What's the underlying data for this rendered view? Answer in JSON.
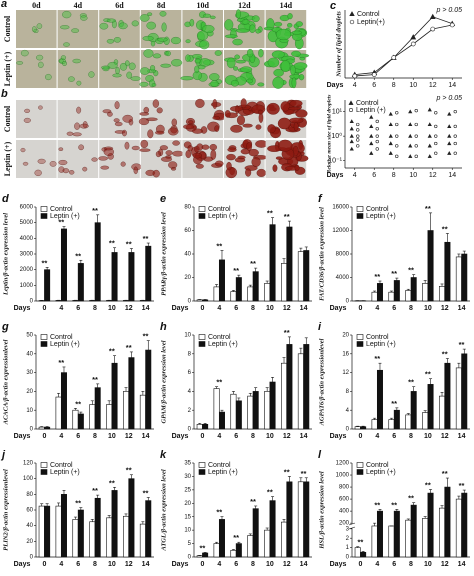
{
  "micrographs": {
    "a": {
      "label": "a",
      "columns": [
        "0d",
        "4d",
        "6d",
        "8d",
        "10d",
        "12d",
        "14d"
      ],
      "rows": [
        "Control",
        "Leptin (+)"
      ]
    },
    "b": {
      "label": "b",
      "rows": [
        "Control",
        "Leptin (+)"
      ]
    }
  },
  "chart_data": [
    {
      "type": "line",
      "label": "c",
      "y_label": "Number of lipid droplets",
      "x_label": "Days",
      "annotation": "p > 0.05",
      "x": [
        4,
        6,
        8,
        10,
        12,
        14
      ],
      "xlim": [
        3,
        15
      ],
      "xticks": [
        4,
        6,
        8,
        10,
        12,
        14
      ],
      "ylim": [
        0,
        100
      ],
      "series": [
        {
          "name": "Control",
          "marker": "triangle",
          "color": "#222222",
          "values": [
            5,
            8,
            30,
            60,
            90,
            80
          ]
        },
        {
          "name": "Leptin(+)",
          "marker": "circle",
          "color": "#222222",
          "values": [
            3,
            5,
            30,
            50,
            72,
            78
          ]
        }
      ]
    },
    {
      "type": "scatter",
      "y_label": "Relative mean size of lipid droplets",
      "x_label": "Days",
      "annotation": "p > 0.05",
      "log_y": true,
      "xlim": [
        3,
        15
      ],
      "xticks": [
        4,
        6,
        8,
        10,
        12,
        14
      ],
      "ylim": [
        0.05,
        30
      ],
      "yticks": [
        {
          "value": 0.1,
          "label": "10⁻¹"
        },
        {
          "value": 1,
          "label": "10⁰"
        },
        {
          "value": 10,
          "label": "10¹"
        }
      ],
      "series": [
        {
          "name": "Control",
          "marker": "triangle",
          "color": "#222222",
          "x": [
            4,
            4,
            4,
            4,
            4,
            6,
            6,
            6,
            6,
            6,
            8,
            8,
            8,
            8,
            8,
            10,
            10,
            10,
            10,
            10,
            12,
            12,
            12,
            12,
            12,
            14,
            14,
            14,
            14,
            14
          ],
          "y": [
            0.3,
            0.6,
            1,
            2,
            4,
            0.2,
            0.5,
            1,
            2.5,
            6,
            0.2,
            0.5,
            1,
            3,
            8,
            0.15,
            0.4,
            1,
            3,
            10,
            0.15,
            0.4,
            1,
            3,
            12,
            0.2,
            0.5,
            1,
            2.5,
            8
          ]
        },
        {
          "name": "Leptin (+)",
          "marker": "circle",
          "color": "#222222",
          "x": [
            4,
            4,
            4,
            4,
            4,
            6,
            6,
            6,
            6,
            6,
            8,
            8,
            8,
            8,
            8,
            10,
            10,
            10,
            10,
            10,
            12,
            12,
            12,
            12,
            12,
            14,
            14,
            14,
            14,
            14
          ],
          "y": [
            0.4,
            0.7,
            1,
            1.8,
            3,
            0.3,
            0.6,
            1,
            2,
            4,
            0.15,
            0.4,
            1,
            3,
            9,
            0.15,
            0.4,
            1,
            3,
            11,
            0.2,
            0.5,
            1,
            2.5,
            9,
            0.2,
            0.5,
            1,
            2.5,
            10
          ]
        }
      ]
    },
    {
      "type": "bar",
      "label": "d",
      "y_label": "Leptin/β-actin expression level",
      "x_label": "Days",
      "categories": [
        "0",
        "4",
        "6",
        "8",
        "10",
        "12",
        "14"
      ],
      "ylim": [
        0,
        6000
      ],
      "yticks": [
        0,
        1000,
        2000,
        3000,
        4000,
        5000,
        6000
      ],
      "series": [
        {
          "name": "Control",
          "color": "#ffffff",
          "values": [
            30,
            40,
            40,
            40,
            40,
            40,
            40
          ],
          "errors": [
            10,
            10,
            10,
            10,
            10,
            10,
            10
          ]
        },
        {
          "name": "Leptin (+)",
          "color": "#111111",
          "values": [
            2000,
            4600,
            2400,
            5000,
            3100,
            3100,
            3500
          ],
          "errors": [
            150,
            150,
            200,
            500,
            300,
            250,
            200
          ]
        }
      ],
      "significance": [
        "**",
        "**",
        "**",
        "**",
        "**",
        "**",
        "**"
      ]
    },
    {
      "type": "bar",
      "label": "e",
      "y_label": "PPARγ/β-actin expression level",
      "x_label": "Days",
      "categories": [
        "0",
        "4",
        "6",
        "8",
        "10",
        "12",
        "14"
      ],
      "ylim": [
        0,
        80
      ],
      "yticks": [
        0,
        20,
        40,
        60,
        80
      ],
      "series": [
        {
          "name": "Control",
          "color": "#ffffff",
          "values": [
            1,
            12,
            8,
            12,
            15,
            32,
            42
          ],
          "errors": [
            0.3,
            2,
            1,
            1.5,
            2,
            4,
            3
          ]
        },
        {
          "name": "Leptin (+)",
          "color": "#111111",
          "values": [
            1,
            35,
            20,
            25,
            65,
            63,
            43
          ],
          "errors": [
            0.3,
            8,
            2,
            3,
            6,
            5,
            3
          ]
        }
      ],
      "significance": [
        null,
        "**",
        "**",
        "**",
        "**",
        "**",
        null
      ]
    },
    {
      "type": "bar",
      "label": "f",
      "y_label": "FAT/CD36/β-actin expression level",
      "x_label": "Days",
      "categories": [
        "0",
        "4",
        "6",
        "8",
        "10",
        "12",
        "14"
      ],
      "ylim": [
        0,
        16000
      ],
      "yticks": [
        0,
        4000,
        8000,
        12000,
        16000
      ],
      "series": [
        {
          "name": "Control",
          "color": "#ffffff",
          "values": [
            50,
            1500,
            1500,
            1800,
            3000,
            2500,
            7500
          ],
          "errors": [
            20,
            200,
            200,
            200,
            500,
            400,
            500
          ]
        },
        {
          "name": "Leptin (+)",
          "color": "#111111",
          "values": [
            50,
            3000,
            3500,
            4000,
            12000,
            10000,
            8000
          ],
          "errors": [
            20,
            400,
            400,
            500,
            3000,
            1500,
            500
          ]
        }
      ],
      "significance": [
        null,
        "**",
        "**",
        "**",
        "**",
        "**",
        null
      ]
    },
    {
      "type": "bar",
      "label": "g",
      "y_label": "ACACA/β-actin expressionlevel",
      "x_label": "Days",
      "categories": [
        "0",
        "4",
        "6",
        "8",
        "10",
        "12",
        "14"
      ],
      "ylim": [
        0,
        50
      ],
      "yticks": [
        0,
        10,
        20,
        30,
        40,
        50
      ],
      "series": [
        {
          "name": "Control",
          "color": "#ffffff",
          "values": [
            1,
            17,
            10,
            13,
            13,
            20,
            18
          ],
          "errors": [
            0.3,
            2,
            1,
            2,
            2,
            2,
            2
          ]
        },
        {
          "name": "Leptin (+)",
          "color": "#111111",
          "values": [
            1,
            30,
            8,
            22,
            35,
            38,
            42
          ],
          "errors": [
            0.3,
            3,
            1,
            2,
            4,
            3,
            5
          ]
        }
      ],
      "significance": [
        null,
        "**",
        "**",
        "**",
        "**",
        "**",
        "**"
      ]
    },
    {
      "type": "bar",
      "label": "h",
      "y_label": "GPAM/β-actin expression level",
      "x_label": "Days",
      "categories": [
        "0",
        "4",
        "6",
        "8",
        "10",
        "12",
        "14"
      ],
      "ylim": [
        0,
        10
      ],
      "yticks": [
        0,
        2,
        4,
        6,
        8,
        10
      ],
      "series": [
        {
          "name": "Control",
          "color": "#ffffff",
          "values": [
            0.5,
            4.3,
            3.7,
            3.5,
            4,
            7,
            8
          ],
          "errors": [
            0.1,
            0.2,
            0.3,
            0.3,
            0.4,
            0.6,
            0.6
          ]
        },
        {
          "name": "Leptin (+)",
          "color": "#111111",
          "values": [
            0.5,
            1.8,
            3,
            4,
            5,
            9,
            9
          ],
          "errors": [
            0.1,
            0.2,
            0.3,
            0.4,
            0.5,
            0.8,
            0.7
          ]
        }
      ],
      "significance": [
        null,
        "**",
        null,
        null,
        null,
        "**",
        null
      ]
    },
    {
      "type": "bar",
      "label": "i",
      "y_label": "AGPAT6/β-actin expressionlevel",
      "x_label": "Days",
      "categories": [
        "0",
        "4",
        "6",
        "8",
        "10",
        "12",
        "14"
      ],
      "ylim": [
        0,
        20
      ],
      "yticks": [
        0,
        4,
        8,
        12,
        16,
        20
      ],
      "series": [
        {
          "name": "Control",
          "color": "#ffffff",
          "values": [
            0.5,
            2,
            2,
            3,
            3.5,
            7,
            13
          ],
          "errors": [
            0.1,
            0.3,
            0.3,
            0.3,
            0.4,
            0.8,
            1
          ]
        },
        {
          "name": "Leptin (+)",
          "color": "#111111",
          "values": [
            0.5,
            12.5,
            4,
            8,
            9.5,
            14,
            16
          ],
          "errors": [
            0.1,
            1.5,
            0.5,
            1,
            1.2,
            1,
            1
          ]
        }
      ],
      "significance": [
        null,
        "**",
        "**",
        "**",
        "**",
        "**",
        "**"
      ]
    },
    {
      "type": "bar",
      "label": "j",
      "y_label": "PLIN2/β-actin expressionlevel",
      "x_label": "Days",
      "categories": [
        "0",
        "4",
        "6",
        "8",
        "10",
        "12",
        "14"
      ],
      "ylim": [
        0,
        120
      ],
      "yticks": [
        0,
        20,
        40,
        60,
        80,
        100,
        120
      ],
      "series": [
        {
          "name": "Control",
          "color": "#ffffff",
          "values": [
            65,
            65,
            48,
            45,
            50,
            52,
            42
          ],
          "errors": [
            3,
            4,
            3,
            3,
            3,
            3,
            3
          ]
        },
        {
          "name": "Leptin (+)",
          "color": "#111111",
          "values": [
            65,
            80,
            60,
            75,
            85,
            100,
            72
          ],
          "errors": [
            3,
            5,
            3,
            4,
            4,
            5,
            4
          ]
        }
      ],
      "significance": [
        null,
        null,
        "**",
        "**",
        "**",
        "**",
        "**"
      ]
    },
    {
      "type": "bar",
      "label": "k",
      "y_label": "ATGL/β-actin expression level",
      "x_label": "Days",
      "categories": [
        "0",
        "4",
        "6",
        "8",
        "10",
        "12",
        "14"
      ],
      "ylim": [
        0,
        35
      ],
      "yticks": [
        0,
        5,
        10,
        15,
        20,
        25,
        30,
        35
      ],
      "series": [
        {
          "name": "Control",
          "color": "#ffffff",
          "values": [
            0.5,
            5,
            2.5,
            8,
            10,
            13,
            28
          ],
          "errors": [
            0.1,
            0.5,
            0.3,
            0.6,
            0.8,
            1,
            1.5
          ]
        },
        {
          "name": "Leptin (+)",
          "color": "#111111",
          "values": [
            1.5,
            14,
            5,
            18,
            21,
            28,
            28
          ],
          "errors": [
            0.2,
            1,
            0.5,
            1,
            1.5,
            2,
            1.5
          ]
        }
      ],
      "significance": [
        "**",
        "**",
        "**",
        "**",
        "**",
        "**",
        "**"
      ]
    },
    {
      "type": "bar",
      "label": "l",
      "y_label": "HSL/β-actin expression level",
      "x_label": "Days",
      "categories": [
        "0",
        "4",
        "6",
        "8",
        "10",
        "12",
        "14"
      ],
      "ylim": [
        0,
        1200
      ],
      "ybreak": [
        3,
        200
      ],
      "yticks": [
        0,
        1,
        2,
        3,
        200,
        400,
        600,
        800,
        1000,
        1200
      ],
      "series": [
        {
          "name": "Control",
          "color": "#ffffff",
          "values": [
            1,
            180,
            150,
            250,
            280,
            450,
            600
          ],
          "errors": [
            0.1,
            20,
            20,
            20,
            30,
            40,
            50
          ]
        },
        {
          "name": "Leptin (+)",
          "color": "#111111",
          "values": [
            0.5,
            400,
            400,
            500,
            700,
            800,
            700
          ],
          "errors": [
            0.1,
            30,
            30,
            40,
            60,
            150,
            50
          ]
        }
      ],
      "significance": [
        "**",
        "**",
        "**",
        "**",
        "**",
        "**",
        "**"
      ]
    }
  ]
}
